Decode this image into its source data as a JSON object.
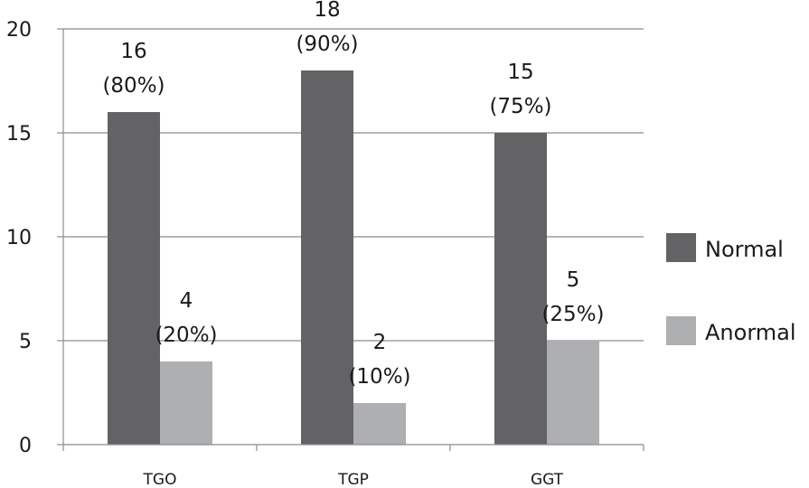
{
  "chart_data": {
    "type": "bar",
    "categories": [
      "TGO",
      "TGP",
      "GGT"
    ],
    "series": [
      {
        "name": "Normal",
        "color": "#636365",
        "values": [
          16,
          18,
          15
        ],
        "labels": [
          [
            "16",
            "(80%)"
          ],
          [
            "18",
            "(90%)"
          ],
          [
            "15",
            "(75%)"
          ]
        ]
      },
      {
        "name": "Anormal",
        "color": "#aeafb1",
        "values": [
          4,
          2,
          5
        ],
        "labels": [
          [
            "4",
            "(20%)"
          ],
          [
            "2",
            "(10%)"
          ],
          [
            "5",
            "(25%)"
          ]
        ]
      }
    ],
    "ylim": [
      0,
      20
    ],
    "yticks": [
      0,
      5,
      10,
      15,
      20
    ],
    "grid": true,
    "legend": "right",
    "title": "",
    "xlabel": "",
    "ylabel": ""
  }
}
